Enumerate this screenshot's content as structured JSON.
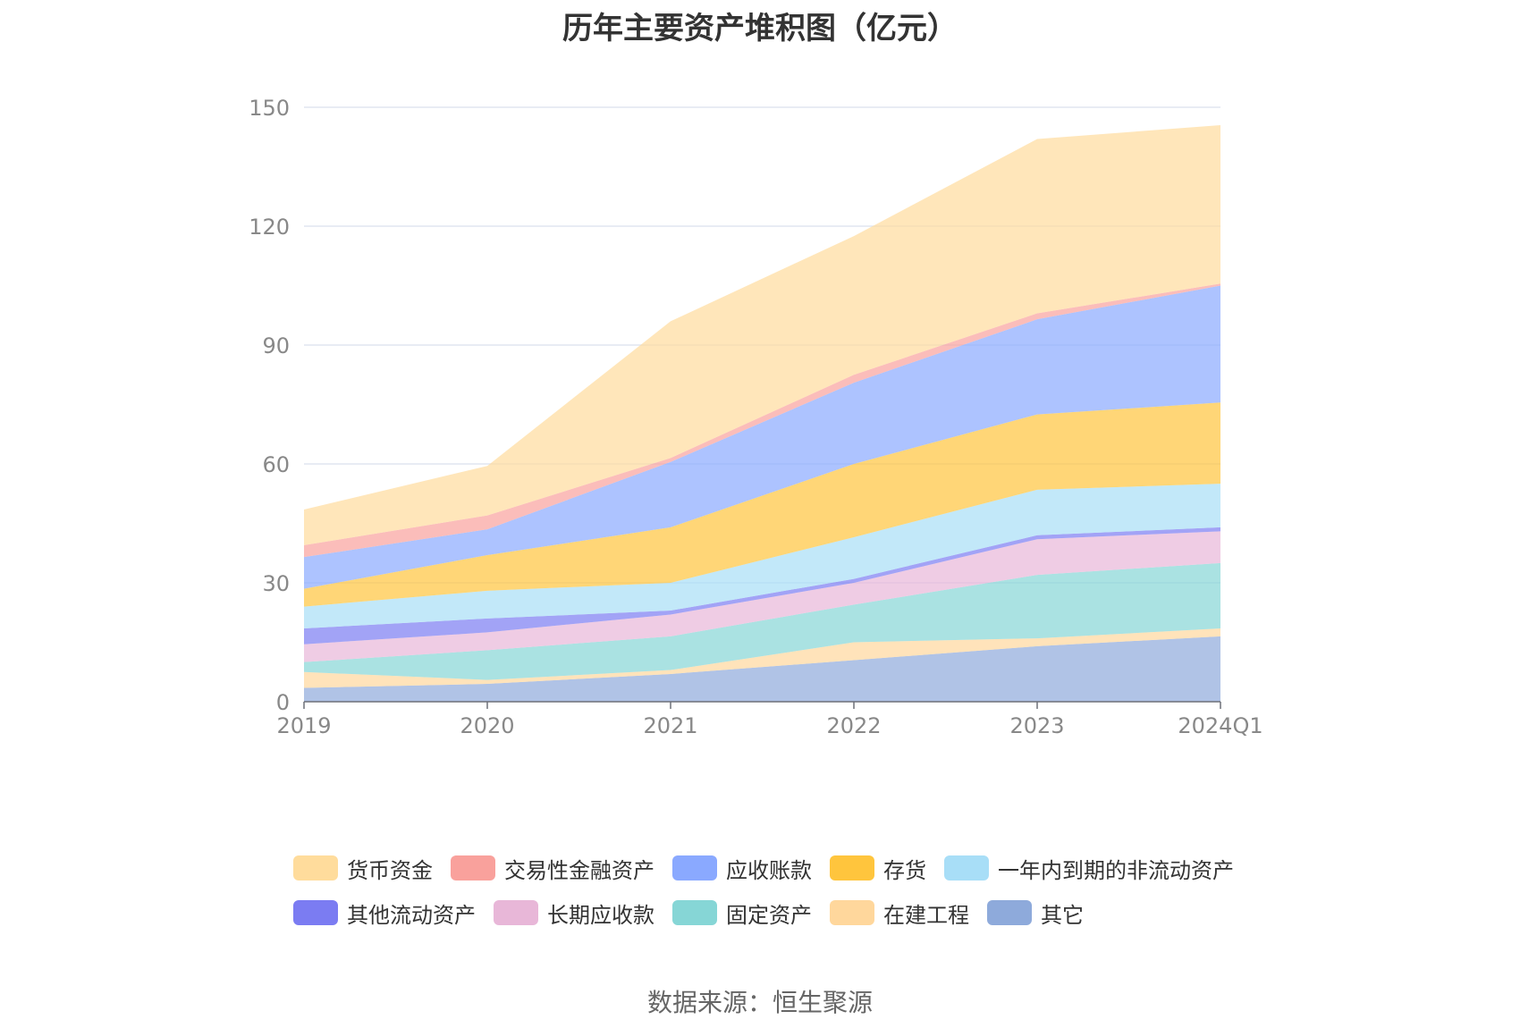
{
  "chart_data": {
    "type": "area",
    "stacked": true,
    "title": "历年主要资产堆积图（亿元）",
    "categories": [
      "2019",
      "2020",
      "2021",
      "2022",
      "2023",
      "2024Q1"
    ],
    "ylim": [
      0,
      150
    ],
    "yticks": [
      "0",
      "30",
      "60",
      "90",
      "120",
      "150"
    ],
    "grid": true,
    "legend_position": "bottom",
    "series": [
      {
        "name": "其它",
        "color": "#8eaadb",
        "values": [
          3.5,
          4.5,
          7.0,
          10.5,
          14.0,
          16.5
        ]
      },
      {
        "name": "在建工程",
        "color": "#ffd79c",
        "values": [
          4.0,
          1.0,
          1.0,
          4.5,
          2.0,
          2.0
        ]
      },
      {
        "name": "固定资产",
        "color": "#86d6d6",
        "values": [
          2.5,
          7.5,
          8.5,
          9.5,
          16.0,
          16.5
        ]
      },
      {
        "name": "长期应收款",
        "color": "#e8b7d8",
        "values": [
          4.5,
          4.5,
          5.5,
          5.5,
          9.0,
          8.0
        ]
      },
      {
        "name": "其他流动资产",
        "color": "#7b7cf2",
        "values": [
          4.0,
          3.5,
          1.0,
          1.0,
          1.0,
          1.0
        ]
      },
      {
        "name": "一年内到期的非流动资产",
        "color": "#a8def7",
        "values": [
          5.5,
          7.0,
          7.0,
          10.5,
          11.5,
          11.0
        ]
      },
      {
        "name": "存货",
        "color": "#ffc53d",
        "values": [
          4.5,
          9.0,
          14.0,
          18.5,
          19.0,
          20.5
        ]
      },
      {
        "name": "应收账款",
        "color": "#8aa9ff",
        "values": [
          8.0,
          6.5,
          16.5,
          20.5,
          24.0,
          29.5
        ]
      },
      {
        "name": "交易性金融资产",
        "color": "#f9a19c",
        "values": [
          3.0,
          3.5,
          1.0,
          2.0,
          1.5,
          0.5
        ]
      },
      {
        "name": "货币资金",
        "color": "#ffdc9c",
        "values": [
          9.0,
          12.5,
          34.5,
          35.0,
          44.0,
          40.0
        ]
      }
    ],
    "legend_order": [
      "货币资金",
      "交易性金融资产",
      "应收账款",
      "存货",
      "一年内到期的非流动资产",
      "其他流动资产",
      "长期应收款",
      "固定资产",
      "在建工程",
      "其它"
    ]
  },
  "source_text": "数据来源：恒生聚源"
}
